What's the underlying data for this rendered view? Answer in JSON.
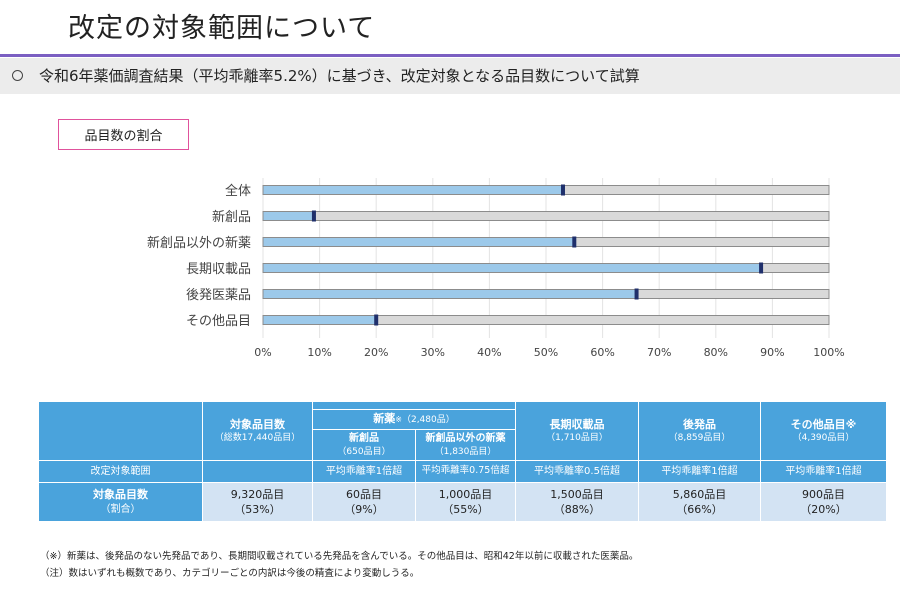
{
  "page": {
    "title": "改定の対象範囲について",
    "subtitle": "令和6年薬価調査結果（平均乖離率5.2%）に基づき、改定対象となる品目数について試算",
    "section_label": "品目数の割合"
  },
  "colors": {
    "accent": "#7b5fc2",
    "bar_fill": "#9cc9ea",
    "bar_track": "#d9d9d9",
    "marker": "#1f2f6b",
    "table_header": "#4aa3dc",
    "table_value": "#d3e3f3",
    "label_border": "#e0529c"
  },
  "chart_data": {
    "type": "bar",
    "orientation": "horizontal",
    "categories": [
      "全体",
      "新創品",
      "新創品以外の新薬",
      "長期収載品",
      "後発医薬品",
      "その他品目"
    ],
    "values": [
      53,
      9,
      55,
      88,
      66,
      20
    ],
    "xlim": [
      0,
      100
    ],
    "x_ticks": [
      "0%",
      "10%",
      "20%",
      "30%",
      "40%",
      "50%",
      "60%",
      "70%",
      "80%",
      "90%",
      "100%"
    ],
    "grid": true,
    "legend": "none"
  },
  "table": {
    "headers": {
      "target_count": {
        "title": "対象品目数",
        "sub": "（総数17,440品目）"
      },
      "new_drugs": {
        "title": "新薬",
        "mark": "※",
        "sub": "（2,480品）"
      },
      "innovative": {
        "title": "新創品",
        "sub": "（650品目）"
      },
      "other_new": {
        "title": "新創品以外の新薬",
        "sub": "（1,830品目）"
      },
      "long_listed": {
        "title": "長期収載品",
        "sub": "（1,710品目）"
      },
      "generic": {
        "title": "後発品",
        "sub": "（8,859品目）"
      },
      "others": {
        "title": "その他品目",
        "mark": "※",
        "sub": "（4,390品目）"
      }
    },
    "scope_row": {
      "label": "改定対象範囲",
      "innovative": "平均乖離率1倍超",
      "other_new": "平均乖離率0.75倍超",
      "long_listed": "平均乖離率0.5倍超",
      "generic": "平均乖離率1倍超",
      "others": "平均乖離率1倍超"
    },
    "count_row": {
      "label": "対象品目数",
      "label_sub": "（割合）",
      "total": {
        "count": "9,320品目",
        "pct": "（53%）"
      },
      "innovative": {
        "count": "60品目",
        "pct": "（9%）"
      },
      "other_new": {
        "count": "1,000品目",
        "pct": "（55%）"
      },
      "long_listed": {
        "count": "1,500品目",
        "pct": "（88%）"
      },
      "generic": {
        "count": "5,860品目",
        "pct": "（66%）"
      },
      "others": {
        "count": "900品目",
        "pct": "（20%）"
      }
    }
  },
  "footnotes": [
    "（※）新薬は、後発品のない先発品であり、長期間収載されている先発品を含んでいる。その他品目は、昭和42年以前に収載された医薬品。",
    "（注）数はいずれも概数であり、カテゴリーごとの内訳は今後の精査により変動しうる。"
  ]
}
